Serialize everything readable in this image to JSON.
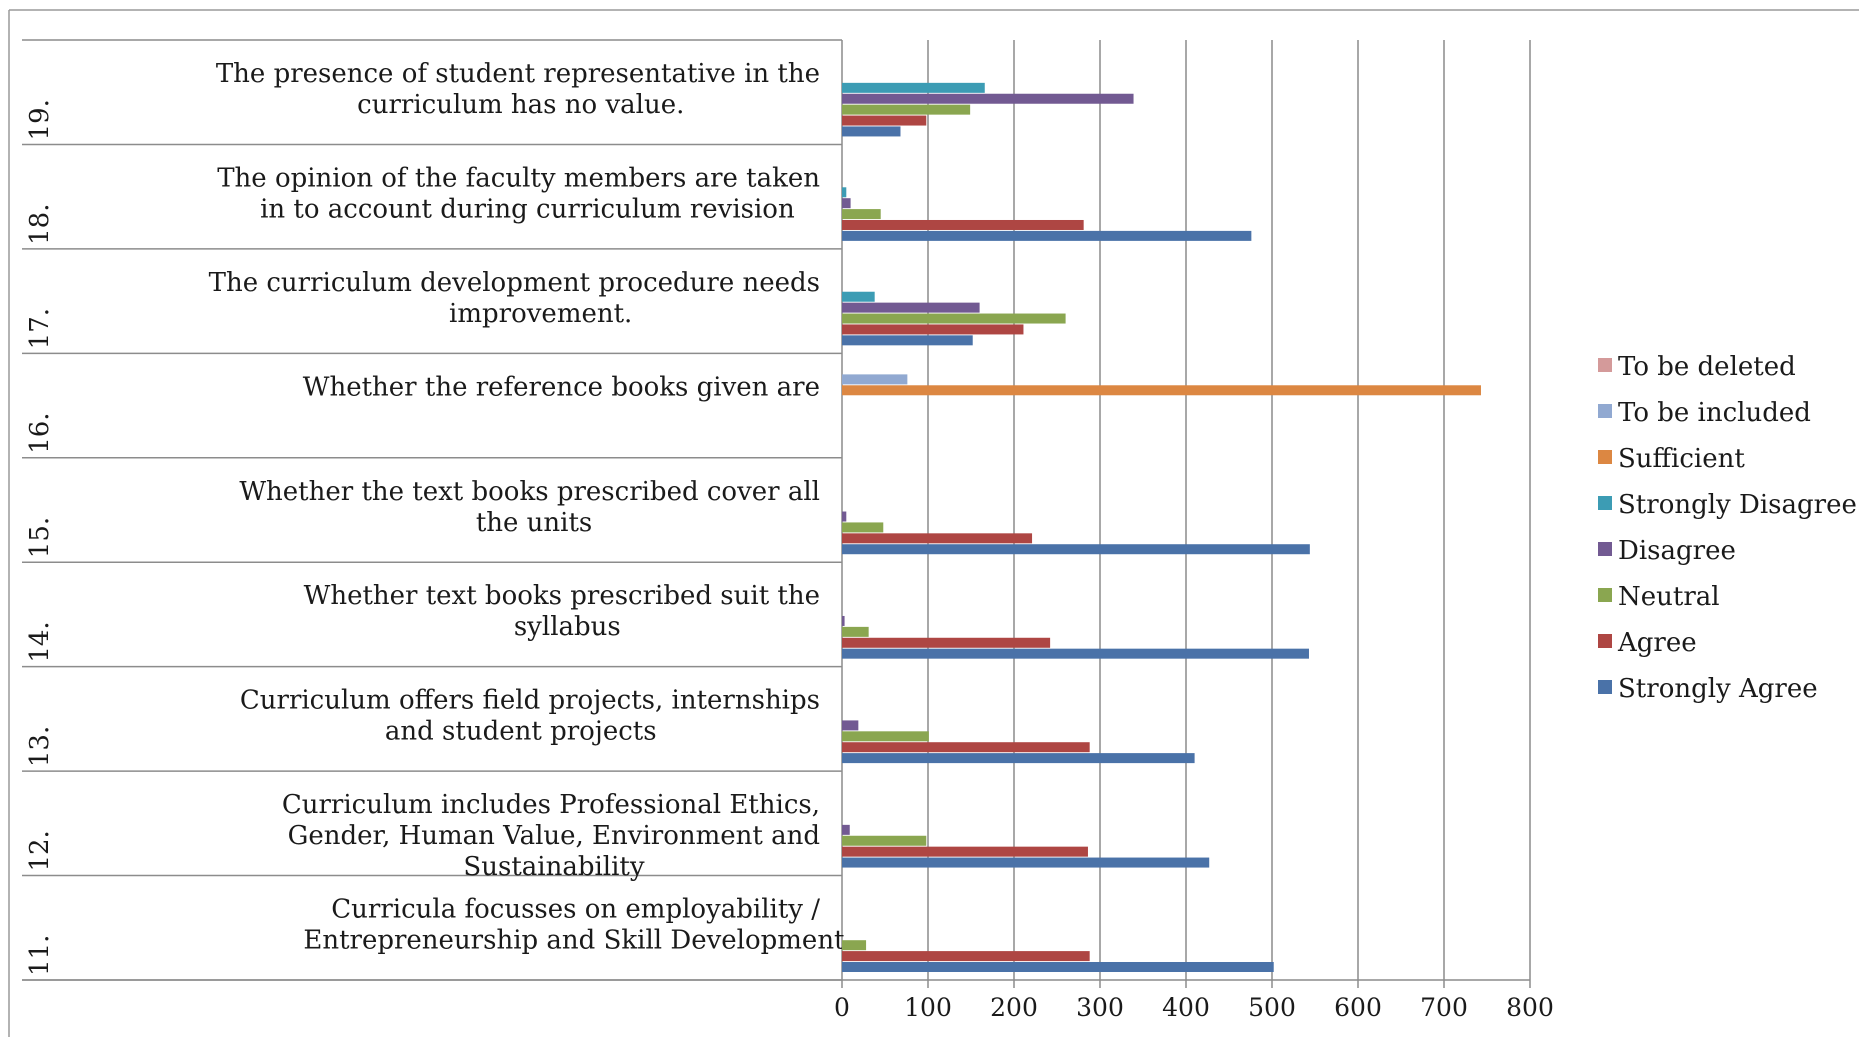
{
  "chart_data": {
    "type": "bar",
    "orientation": "horizontal",
    "xlim": [
      0,
      800
    ],
    "x_ticks": [
      "0",
      "100",
      "200",
      "300",
      "400",
      "500",
      "600",
      "700",
      "800"
    ],
    "grid": "vertical",
    "legend_position": "right",
    "categories": [
      {
        "number": "11.",
        "text": "Curricula focusses on employability / Entrepreneurship and Skill Development"
      },
      {
        "number": "12.",
        "text": "Curriculum includes Professional Ethics, Gender, Human Value, Environment and Sustainability"
      },
      {
        "number": "13.",
        "text": "Curriculum offers field projects, internships and student projects"
      },
      {
        "number": "14.",
        "text": "Whether text books prescribed suit the syllabus"
      },
      {
        "number": "15.",
        "text": "Whether the text books prescribed cover all the units"
      },
      {
        "number": "16.",
        "text": "Whether the reference books given are"
      },
      {
        "number": "17.",
        "text": "The curriculum development procedure needs improvement."
      },
      {
        "number": "18.",
        "text": "The opinion of the faculty members are taken in to account during curriculum revision"
      },
      {
        "number": "19.",
        "text": "The presence of student representative in the curriculum has no value."
      }
    ],
    "series": [
      {
        "name": "Strongly Agree",
        "color": "#4a72a8",
        "values": [
          502,
          427,
          410,
          543,
          544,
          0,
          152,
          476,
          68
        ]
      },
      {
        "name": "Agree",
        "color": "#ae4643",
        "values": [
          288,
          286,
          288,
          242,
          221,
          0,
          211,
          281,
          98
        ]
      },
      {
        "name": "Neutral",
        "color": "#8aa650",
        "values": [
          28,
          98,
          101,
          31,
          48,
          0,
          260,
          45,
          149
        ]
      },
      {
        "name": "Disagree",
        "color": "#725a92",
        "values": [
          0,
          9,
          19,
          3,
          5,
          0,
          160,
          10,
          339
        ]
      },
      {
        "name": "Strongly Disagree",
        "color": "#3c9cb4",
        "values": [
          0,
          0,
          0,
          0,
          0,
          0,
          38,
          5,
          166
        ]
      },
      {
        "name": "Sufficient",
        "color": "#dc8742",
        "values": [
          0,
          0,
          0,
          0,
          0,
          743,
          0,
          0,
          0
        ]
      },
      {
        "name": "To be included",
        "color": "#91a9d1",
        "values": [
          0,
          0,
          0,
          0,
          0,
          76,
          0,
          0,
          0
        ]
      },
      {
        "name": "To be deleted",
        "color": "#d49a9a",
        "values": [
          0,
          0,
          0,
          0,
          0,
          0,
          0,
          0,
          0
        ]
      }
    ],
    "legend_order": [
      "To be deleted",
      "To be included",
      "Sufficient",
      "Strongly Disagree",
      "Disagree",
      "Neutral",
      "Agree",
      "Strongly Agree"
    ]
  }
}
